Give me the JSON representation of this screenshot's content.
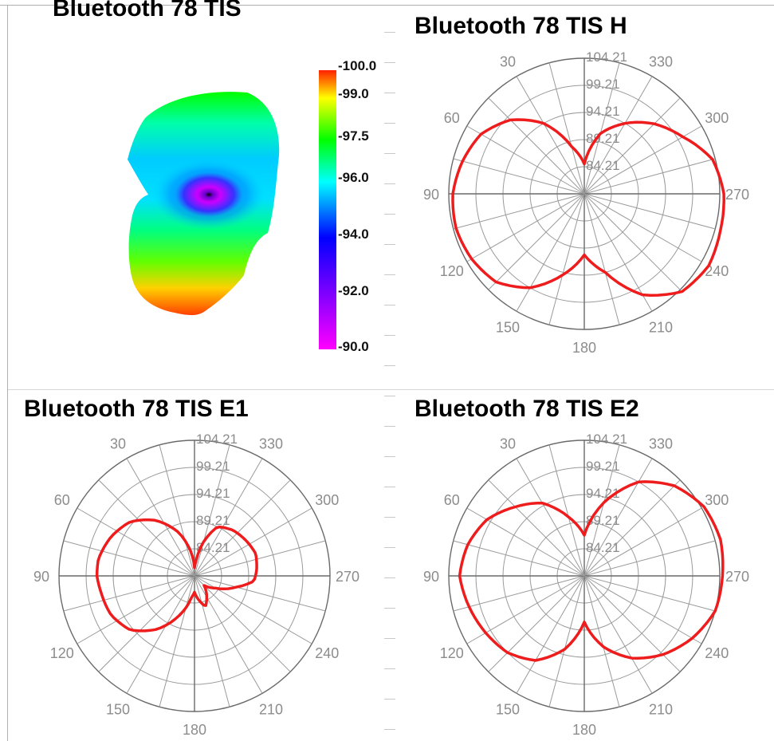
{
  "titles": {
    "tis": "Bluetooth 78 TIS",
    "tis_h": "Bluetooth 78 TIS H",
    "tis_e1": "Bluetooth 78 TIS E1",
    "tis_e2": "Bluetooth 78 TIS E2"
  },
  "colors": {
    "pattern": "#ee1c1c",
    "grid": "#9a9a9a",
    "grid_dark": "#6a6a6a",
    "label": "#8c8c8c",
    "frame": "#b0b0b0"
  },
  "chart_data": [
    {
      "type": "heatmap",
      "title": "Bluetooth 78 TIS",
      "colorbar": {
        "labels": [
          "-100.0",
          "-99.0",
          "-97.5",
          "-96.0",
          "-94.0",
          "-92.0",
          "-90.0"
        ],
        "values": [
          -100.0,
          -99.0,
          -97.5,
          -96.0,
          -94.0,
          -92.0,
          -90.0
        ],
        "range": [
          -100.0,
          -90.0
        ],
        "colors_top_to_bottom": [
          "#ff2000",
          "#ffff00",
          "#00ff00",
          "#00ffff",
          "#0000ff",
          "#ff00ff"
        ]
      }
    },
    {
      "type": "polar",
      "title": "Bluetooth 78 TIS H",
      "radial_ticks": [
        "104.21",
        "99.21",
        "94.21",
        "89.21",
        "84.21"
      ],
      "angle_labels": [
        "30",
        "330",
        "60",
        "300",
        "90",
        "270",
        "120",
        "240",
        "150",
        "210",
        "180"
      ],
      "series": [
        {
          "r_by_angle_deg": {
            "0": 0.22,
            "15": 0.36,
            "30": 0.6,
            "45": 0.77,
            "60": 0.88,
            "75": 0.93,
            "90": 0.97,
            "105": 0.98,
            "120": 0.96,
            "135": 0.92,
            "150": 0.8,
            "165": 0.62,
            "180": 0.45,
            "195": 0.6,
            "210": 0.86,
            "225": 1.02,
            "240": 1.06,
            "255": 1.04,
            "270": 1.03,
            "285": 0.98,
            "300": 0.84,
            "315": 0.73,
            "330": 0.6,
            "345": 0.46
          }
        }
      ]
    },
    {
      "type": "polar",
      "title": "Bluetooth 78 TIS E1",
      "radial_ticks": [
        "104.21",
        "99.21",
        "94.21",
        "89.21",
        "84.21"
      ],
      "angle_labels": [
        "30",
        "330",
        "60",
        "300",
        "90",
        "270",
        "120",
        "240",
        "150",
        "210",
        "180"
      ],
      "series": [
        {
          "r_by_angle_deg": {
            "0": 0.06,
            "10": 0.2,
            "20": 0.34,
            "35": 0.5,
            "50": 0.62,
            "65": 0.68,
            "80": 0.72,
            "90": 0.72,
            "100": 0.7,
            "115": 0.68,
            "130": 0.62,
            "145": 0.48,
            "160": 0.3,
            "172": 0.16,
            "180": 0.12,
            "190": 0.18,
            "200": 0.24,
            "210": 0.18,
            "225": 0.1,
            "240": 0.18,
            "255": 0.32,
            "265": 0.44,
            "275": 0.46,
            "290": 0.48,
            "305": 0.46,
            "320": 0.44,
            "335": 0.4,
            "345": 0.26,
            "355": 0.1
          }
        }
      ]
    },
    {
      "type": "polar",
      "title": "Bluetooth 78 TIS E2",
      "radial_ticks": [
        "104.21",
        "99.21",
        "94.21",
        "89.21",
        "84.21"
      ],
      "angle_labels": [
        "30",
        "330",
        "60",
        "300",
        "90",
        "270",
        "120",
        "240",
        "150",
        "210",
        "180"
      ],
      "series": [
        {
          "r_by_angle_deg": {
            "0": 0.3,
            "15": 0.45,
            "30": 0.62,
            "45": 0.72,
            "60": 0.83,
            "75": 0.89,
            "90": 0.92,
            "105": 0.88,
            "120": 0.84,
            "135": 0.8,
            "150": 0.72,
            "165": 0.56,
            "180": 0.34,
            "195": 0.54,
            "210": 0.7,
            "225": 0.82,
            "240": 0.92,
            "255": 1.0,
            "270": 1.02,
            "285": 1.04,
            "300": 1.02,
            "315": 0.94,
            "330": 0.8,
            "345": 0.56
          }
        }
      ]
    }
  ]
}
